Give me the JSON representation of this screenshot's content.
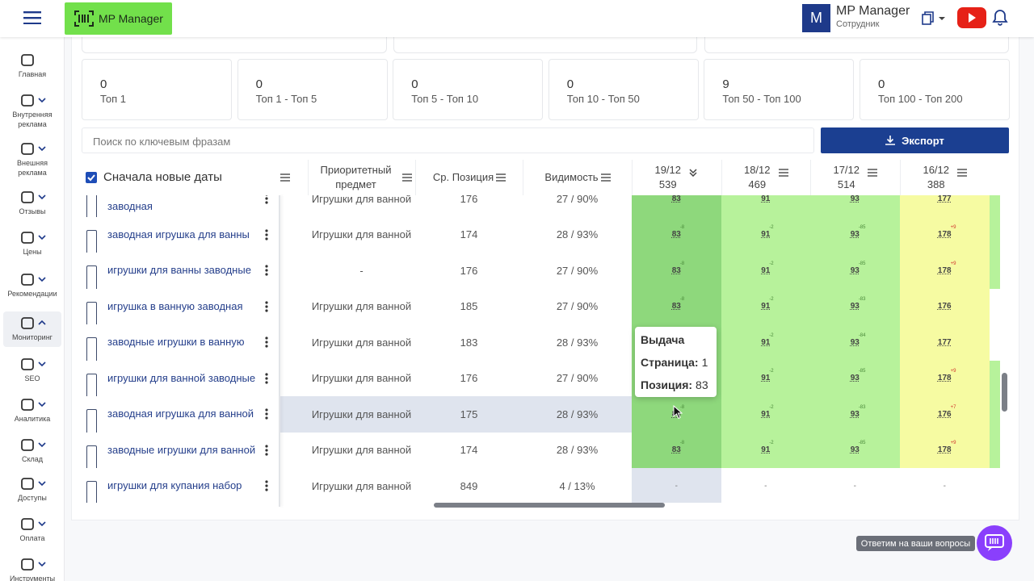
{
  "header": {
    "logo": "MP Manager",
    "avatar": "M",
    "user_name": "MP Manager",
    "user_role": "Сотрудник"
  },
  "sidebar": [
    "Главная",
    "Внутренняя реклама",
    "Внешняя реклама",
    "Отзывы",
    "Цены",
    "Рекомендации",
    "Мониторинг",
    "SEO",
    "Аналитика",
    "Склад",
    "Доступы",
    "Оплата",
    "Инструменты"
  ],
  "stats": [
    {
      "value": 0,
      "label": "Топ 1"
    },
    {
      "value": 0,
      "label": "Топ 1 - Топ 5"
    },
    {
      "value": 0,
      "label": "Топ 5 - Топ 10"
    },
    {
      "value": 0,
      "label": "Топ 10 - Топ 50"
    },
    {
      "value": 9,
      "label": "Топ 50 - Топ 100"
    },
    {
      "value": 0,
      "label": "Топ 100 - Топ 200"
    }
  ],
  "search_placeholder": "Поиск по ключевым фразам",
  "export_button": "Экспорт",
  "table": {
    "sort_label": "Сначала новые даты",
    "columns": [
      "Приоритетный предмет",
      "Ср. Позиция",
      "Видимость"
    ],
    "dates": [
      {
        "date": "19/12",
        "count": 539
      },
      {
        "date": "18/12",
        "count": 469
      },
      {
        "date": "17/12",
        "count": 514
      },
      {
        "date": "16/12",
        "count": 388
      }
    ],
    "rows": [
      {
        "phrase": "заводная",
        "subject": "Игрушки для ванной",
        "avg_position": 176,
        "visibility": "27 / 90%",
        "positions": [
          {
            "value": 83,
            "delta": null
          },
          {
            "value": 91,
            "delta": null
          },
          {
            "value": 93,
            "delta": null
          },
          {
            "value": 177,
            "delta": null
          }
        ]
      },
      {
        "phrase": "заводная игрушка для ванны",
        "subject": "Игрушки для ванной",
        "avg_position": 174,
        "visibility": "28 / 93%",
        "positions": [
          {
            "value": 83,
            "delta": "-8"
          },
          {
            "value": 91,
            "delta": "-2"
          },
          {
            "value": 93,
            "delta": "-85"
          },
          {
            "value": 178,
            "delta": "+9"
          }
        ]
      },
      {
        "phrase": "игрушки для ванны заводные",
        "subject": "-",
        "avg_position": 176,
        "visibility": "27 / 90%",
        "positions": [
          {
            "value": 83,
            "delta": "-8"
          },
          {
            "value": 91,
            "delta": "-2"
          },
          {
            "value": 93,
            "delta": "-85"
          },
          {
            "value": 178,
            "delta": "+9"
          }
        ]
      },
      {
        "phrase": "игрушка в ванную заводная",
        "subject": "Игрушки для ванной",
        "avg_position": 185,
        "visibility": "27 / 90%",
        "positions": [
          {
            "value": 83,
            "delta": "-8"
          },
          {
            "value": 91,
            "delta": "-2"
          },
          {
            "value": 93,
            "delta": "-83"
          },
          {
            "value": 176,
            "delta": null
          }
        ]
      },
      {
        "phrase": "заводные игрушки в ванную",
        "subject": "Игрушки для ванной",
        "avg_position": 183,
        "visibility": "28 / 93%",
        "positions": [
          {
            "value": null,
            "delta": null
          },
          {
            "value": 91,
            "delta": "-2"
          },
          {
            "value": 93,
            "delta": "-84"
          },
          {
            "value": 177,
            "delta": null
          }
        ]
      },
      {
        "phrase": "игрушки для ванной заводные",
        "subject": "Игрушки для ванной",
        "avg_position": 176,
        "visibility": "27 / 90%",
        "positions": [
          {
            "value": null,
            "delta": null
          },
          {
            "value": 91,
            "delta": "-2"
          },
          {
            "value": 93,
            "delta": "-85"
          },
          {
            "value": 178,
            "delta": "+9"
          }
        ]
      },
      {
        "phrase": "заводная игрушка для ванной",
        "subject": "Игрушки для ванной",
        "avg_position": 175,
        "visibility": "28 / 93%",
        "positions": [
          {
            "value": 83,
            "delta": "-8"
          },
          {
            "value": 91,
            "delta": "-2"
          },
          {
            "value": 93,
            "delta": "-83"
          },
          {
            "value": 176,
            "delta": "+7"
          }
        ]
      },
      {
        "phrase": "заводные игрушки для ванной",
        "subject": "Игрушки для ванной",
        "avg_position": 174,
        "visibility": "28 / 93%",
        "positions": [
          {
            "value": 83,
            "delta": "-8"
          },
          {
            "value": 91,
            "delta": "-2"
          },
          {
            "value": 93,
            "delta": "-85"
          },
          {
            "value": 178,
            "delta": "+9"
          }
        ]
      },
      {
        "phrase": "игрушки для купания набор",
        "subject": "Игрушки для ванной",
        "avg_position": 849,
        "visibility": "4 / 13%",
        "positions": [
          {
            "value": "-",
            "delta": null
          },
          {
            "value": "-",
            "delta": null
          },
          {
            "value": "-",
            "delta": null
          },
          {
            "value": "-",
            "delta": null
          }
        ]
      }
    ]
  },
  "tooltip": {
    "title": "Выдача",
    "rows": [
      {
        "label": "Страница:",
        "value": 1
      },
      {
        "label": "Позиция:",
        "value": 83
      }
    ]
  },
  "chat_hint": "Ответим на ваши вопросы"
}
